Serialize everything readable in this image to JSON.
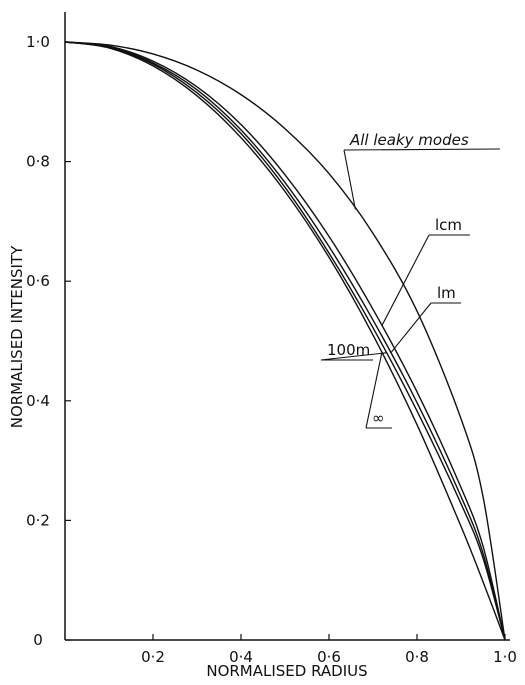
{
  "chart_data": {
    "type": "line",
    "title": "",
    "xlabel": "NORMALISED RADIUS",
    "ylabel": "NORMALISED INTENSITY",
    "xlim": [
      0,
      1.0
    ],
    "ylim": [
      0,
      1.0
    ],
    "grid": false,
    "legend": "none",
    "x_ticks": [
      {
        "value": 0.2,
        "label": "0·2"
      },
      {
        "value": 0.4,
        "label": "0·4"
      },
      {
        "value": 0.6,
        "label": "0·6"
      },
      {
        "value": 0.8,
        "label": "0·8"
      },
      {
        "value": 1.0,
        "label": "1·0"
      }
    ],
    "y_ticks": [
      {
        "value": 0,
        "label": "0"
      },
      {
        "value": 0.2,
        "label": "0·2"
      },
      {
        "value": 0.4,
        "label": "0·4"
      },
      {
        "value": 0.6,
        "label": "0·6"
      },
      {
        "value": 0.8,
        "label": "0·8"
      },
      {
        "value": 1.0,
        "label": "1·0"
      }
    ],
    "x": [
      0,
      0.1,
      0.2,
      0.3,
      0.4,
      0.5,
      0.6,
      0.7,
      0.8,
      0.9,
      0.95,
      1.0
    ],
    "series": [
      {
        "name": "All leaky modes",
        "values": [
          1.0,
          0.995,
          0.98,
          0.953,
          0.912,
          0.855,
          0.78,
          0.68,
          0.55,
          0.37,
          0.24,
          0.0
        ]
      },
      {
        "name": "1cm",
        "values": [
          1.0,
          0.993,
          0.968,
          0.925,
          0.862,
          0.778,
          0.675,
          0.553,
          0.415,
          0.255,
          0.157,
          0.0
        ]
      },
      {
        "name": "1m",
        "values": [
          1.0,
          0.992,
          0.965,
          0.92,
          0.853,
          0.765,
          0.658,
          0.535,
          0.397,
          0.24,
          0.145,
          0.0
        ]
      },
      {
        "name": "100m",
        "values": [
          1.0,
          0.991,
          0.963,
          0.915,
          0.847,
          0.757,
          0.647,
          0.522,
          0.383,
          0.228,
          0.137,
          0.0
        ]
      },
      {
        "name": "∞",
        "values": [
          1.0,
          0.99,
          0.96,
          0.91,
          0.84,
          0.75,
          0.64,
          0.51,
          0.36,
          0.19,
          0.0975,
          0.0
        ]
      }
    ],
    "annotations": [
      {
        "text": "All leaky modes",
        "series": "All leaky modes",
        "at_x": 0.78
      },
      {
        "text": "lcm",
        "series": "1cm",
        "at_x": 0.78
      },
      {
        "text": "lm",
        "series": "1m",
        "at_x": 0.78
      },
      {
        "text": "100m",
        "series": "100m",
        "at_x": 0.78
      },
      {
        "text": "∞",
        "series": "∞",
        "at_x": 0.78
      }
    ]
  }
}
